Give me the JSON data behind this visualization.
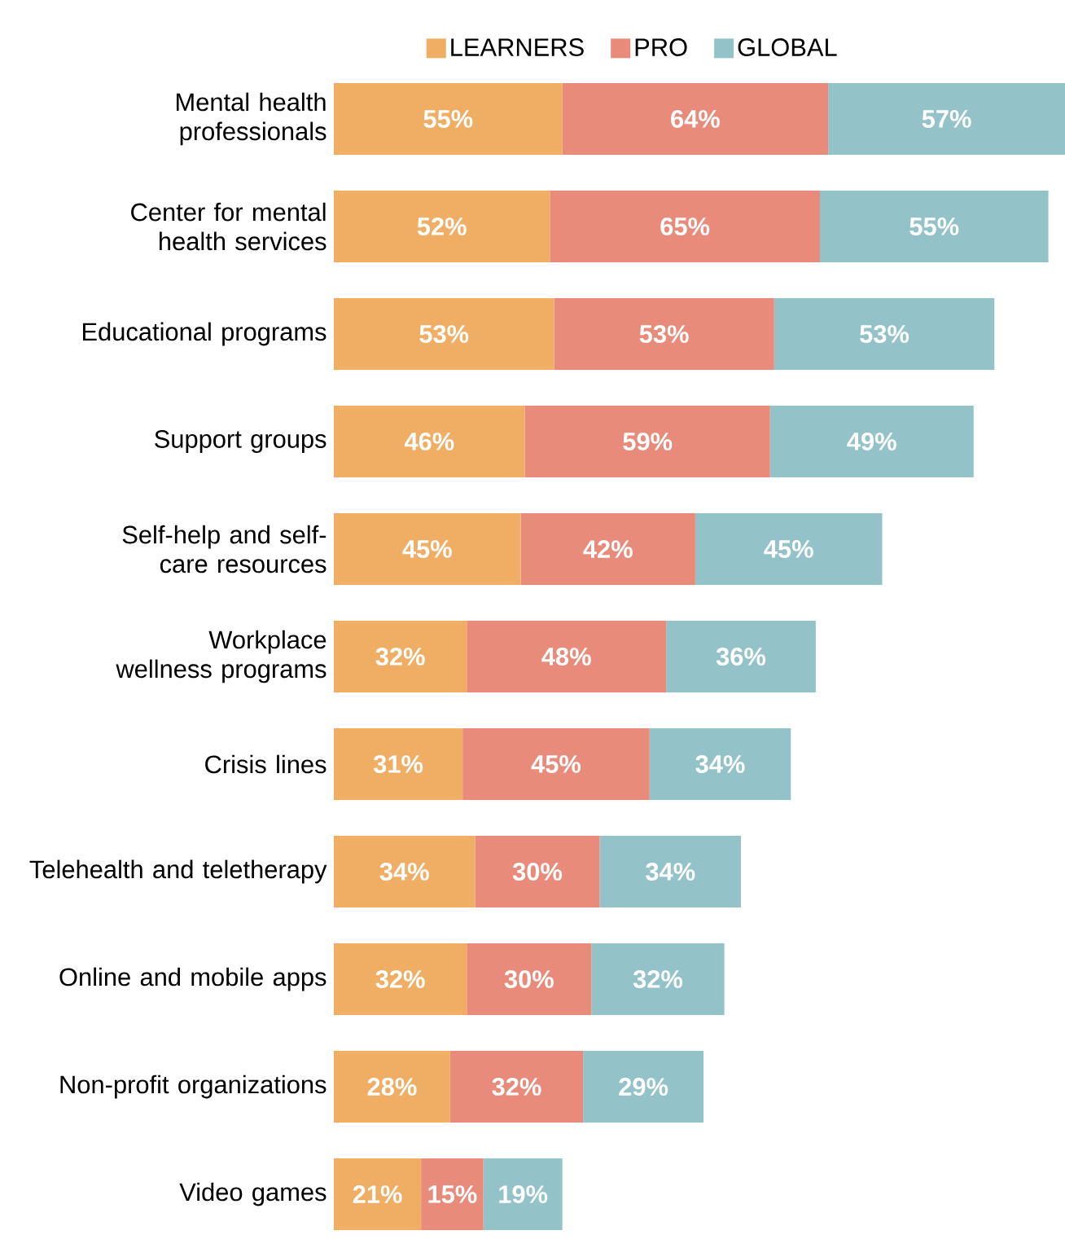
{
  "chart_data": {
    "type": "bar",
    "orientation": "horizontal",
    "stacked": true,
    "legend": "top",
    "categories": [
      "Mental health professionals",
      "Center for mental health services",
      "Educational programs",
      "Support groups",
      "Self-help and self-care resources",
      "Workplace wellness programs",
      "Crisis lines",
      "Telehealth and teletherapy",
      "Online and mobile apps",
      "Non-profit organizations",
      "Video games"
    ],
    "tick_labels": "y",
    "series": [
      {
        "name": "LEARNERS",
        "color": "#f0ad64",
        "values": [
          55,
          52,
          53,
          46,
          45,
          32,
          31,
          34,
          32,
          28,
          21
        ],
        "value_labels": [
          "55%",
          "52%",
          "53%",
          "46%",
          "45%",
          "32%",
          "31%",
          "34%",
          "32%",
          "28%",
          "21%"
        ]
      },
      {
        "name": "PRO",
        "color": "#e88b7b",
        "values": [
          64,
          65,
          53,
          59,
          42,
          48,
          45,
          30,
          30,
          32,
          15
        ],
        "value_labels": [
          "64%",
          "65%",
          "53%",
          "59%",
          "42%",
          "48%",
          "45%",
          "30%",
          "30%",
          "32%",
          "15%"
        ]
      },
      {
        "name": "GLOBAL",
        "color": "#93c3c9",
        "values": [
          57,
          55,
          53,
          49,
          45,
          36,
          34,
          34,
          32,
          29,
          19
        ],
        "value_labels": [
          "57%",
          "55%",
          "53%",
          "49%",
          "45%",
          "36%",
          "34%",
          "34%",
          "32%",
          "29%",
          "19%"
        ]
      }
    ]
  }
}
